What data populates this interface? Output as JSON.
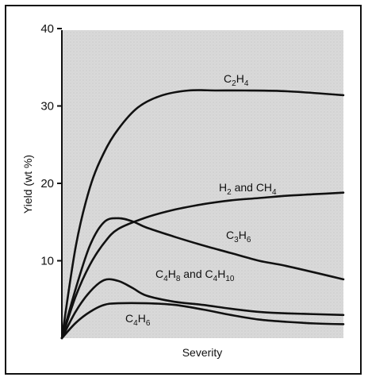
{
  "chart_data": {
    "type": "line",
    "title": "",
    "xlabel": "Severity",
    "ylabel": "Yield (wt %)",
    "ylim": [
      0,
      40
    ],
    "xlim": [
      0,
      1
    ],
    "yticks": [
      10,
      20,
      30,
      40
    ],
    "grid": false,
    "legend": "none",
    "colors": {
      "line": "#111111",
      "background": "#dcdcdc",
      "frame": "#111111"
    },
    "series": [
      {
        "name": "C₂H₄",
        "x": [
          0,
          0.05,
          0.1,
          0.15,
          0.2,
          0.27,
          0.35,
          0.45,
          0.55,
          0.65,
          0.8,
          1.0
        ],
        "values": [
          0,
          12,
          19.5,
          24,
          27,
          29.8,
          31.3,
          32,
          32,
          32,
          31.9,
          31.4
        ]
      },
      {
        "name": "H₂ and CH₄",
        "x": [
          0,
          0.05,
          0.1,
          0.15,
          0.2,
          0.3,
          0.4,
          0.5,
          0.6,
          0.7,
          0.8,
          0.9,
          1.0
        ],
        "values": [
          0,
          5.5,
          9.5,
          12.3,
          14.1,
          15.6,
          16.6,
          17.3,
          17.8,
          18.1,
          18.4,
          18.6,
          18.8
        ]
      },
      {
        "name": "C₃H₆",
        "x": [
          0,
          0.05,
          0.1,
          0.15,
          0.2,
          0.25,
          0.3,
          0.4,
          0.5,
          0.6,
          0.7,
          0.8,
          1.0
        ],
        "values": [
          0,
          6.5,
          12,
          15,
          15.5,
          15.1,
          14.3,
          13.1,
          12.0,
          11.0,
          10.0,
          9.3,
          7.6
        ]
      },
      {
        "name": "C₄H₈ and C₄H₁₀",
        "x": [
          0,
          0.05,
          0.1,
          0.15,
          0.2,
          0.25,
          0.3,
          0.4,
          0.5,
          0.6,
          0.7,
          0.8,
          1.0
        ],
        "values": [
          0,
          3.5,
          6.0,
          7.5,
          7.4,
          6.5,
          5.5,
          4.7,
          4.3,
          3.8,
          3.4,
          3.2,
          3.0
        ]
      },
      {
        "name": "C₄H₆",
        "x": [
          0,
          0.05,
          0.1,
          0.15,
          0.2,
          0.3,
          0.4,
          0.5,
          0.6,
          0.7,
          0.8,
          0.9,
          1.0
        ],
        "values": [
          0,
          2.0,
          3.4,
          4.3,
          4.5,
          4.5,
          4.3,
          3.7,
          3.0,
          2.4,
          2.1,
          1.9,
          1.8
        ]
      }
    ],
    "annotations": [
      {
        "series": 0,
        "text_main": "C",
        "text_sub1": "2",
        "text_mid": "H",
        "text_sub2": "4",
        "text_tail": ""
      },
      {
        "series": 1,
        "text_main": "H",
        "text_sub1": "2",
        "text_mid": " and CH",
        "text_sub2": "4",
        "text_tail": ""
      },
      {
        "series": 2,
        "text_main": "C",
        "text_sub1": "3",
        "text_mid": "H",
        "text_sub2": "6",
        "text_tail": ""
      },
      {
        "series": 3,
        "text_main": "C",
        "text_sub1": "4",
        "text_mid": "H",
        "text_sub2": "8",
        "text_tail": " and C",
        "text_sub3": "4",
        "text_mid2": "H",
        "text_sub4": "10"
      },
      {
        "series": 4,
        "text_main": "C",
        "text_sub1": "4",
        "text_mid": "H",
        "text_sub2": "6",
        "text_tail": ""
      }
    ]
  }
}
